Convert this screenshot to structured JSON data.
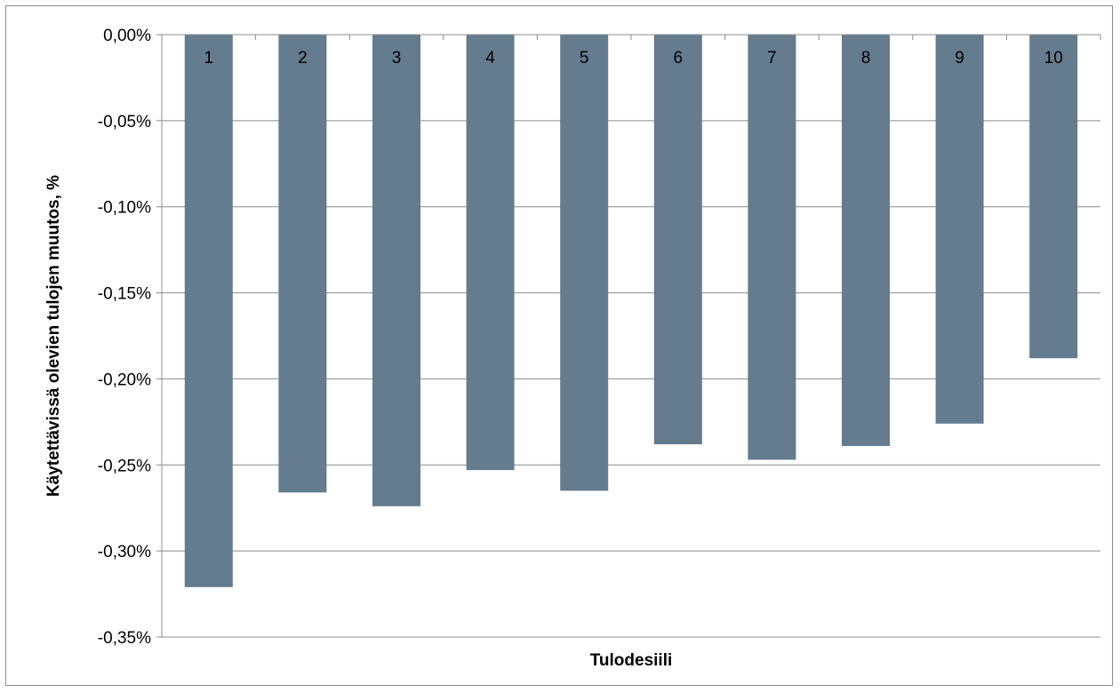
{
  "chart_data": {
    "type": "bar",
    "title": "",
    "xlabel": "Tulodesiili",
    "ylabel": "Käytettävissä olevien tulojen muutos, %",
    "categories": [
      "1",
      "2",
      "3",
      "4",
      "5",
      "6",
      "7",
      "8",
      "9",
      "10"
    ],
    "values": [
      -0.321,
      -0.266,
      -0.274,
      -0.253,
      -0.265,
      -0.238,
      -0.247,
      -0.239,
      -0.226,
      -0.188
    ],
    "ylim": [
      -0.35,
      0.0
    ],
    "yticks": [
      {
        "value": 0.0,
        "label": "0,00%"
      },
      {
        "value": -0.05,
        "label": "-0,05%"
      },
      {
        "value": -0.1,
        "label": "-0,10%"
      },
      {
        "value": -0.15,
        "label": "-0,15%"
      },
      {
        "value": -0.2,
        "label": "-0,20%"
      },
      {
        "value": -0.25,
        "label": "-0,25%"
      },
      {
        "value": -0.3,
        "label": "-0,30%"
      },
      {
        "value": -0.35,
        "label": "-0,35%"
      }
    ],
    "category_label_position": "top, inside bars at zero line",
    "grid": true,
    "legend": "none",
    "bar_color": "#657b8e",
    "grid_color": "#8c8c8c"
  }
}
